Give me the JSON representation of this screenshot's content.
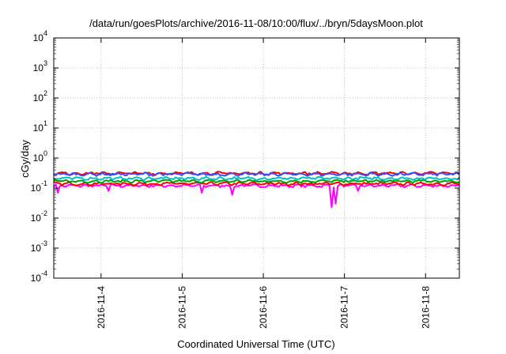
{
  "chart_data": {
    "type": "line",
    "title": "/data/run/goesPlots/archive/2016-11-08/10:00/flux/../bryn/5daysMoon.plot",
    "xlabel": "Coordinated Universal Time (UTC)",
    "ylabel": "cGy/day",
    "yscale": "log",
    "ylim": [
      0.0001,
      10000
    ],
    "y_ticks": [
      {
        "base": "10",
        "exp": "-4",
        "value": 0.0001
      },
      {
        "base": "10",
        "exp": "-3",
        "value": 0.001
      },
      {
        "base": "10",
        "exp": "-2",
        "value": 0.01
      },
      {
        "base": "10",
        "exp": "-1",
        "value": 0.1
      },
      {
        "base": "10",
        "exp": "0",
        "value": 1
      },
      {
        "base": "10",
        "exp": "1",
        "value": 10
      },
      {
        "base": "10",
        "exp": "2",
        "value": 100
      },
      {
        "base": "10",
        "exp": "3",
        "value": 1000
      },
      {
        "base": "10",
        "exp": "4",
        "value": 10000
      }
    ],
    "xlim": [
      "2016-11-03T10:00",
      "2016-11-08T10:00"
    ],
    "x_ticks": [
      "2016-11-4",
      "2016-11-5",
      "2016-11-6",
      "2016-11-7",
      "2016-11-8"
    ],
    "grid": true,
    "legend": "none",
    "series": [
      {
        "color": "#ff00ff",
        "base": 0.12,
        "dips": [
          {
            "date": "2016-11-03T11:00",
            "value": 0.07
          },
          {
            "date": "2016-11-04T02:00",
            "value": 0.08
          },
          {
            "date": "2016-11-05T06:00",
            "value": 0.07
          },
          {
            "date": "2016-11-05T15:00",
            "value": 0.06
          },
          {
            "date": "2016-11-06T20:00",
            "value": 0.023
          },
          {
            "date": "2016-11-06T21:30",
            "value": 0.03
          },
          {
            "date": "2016-11-07T04:00",
            "value": 0.08
          }
        ]
      },
      {
        "color": "#ff0000",
        "base": 0.14
      },
      {
        "color": "#00a000",
        "base": 0.17
      },
      {
        "color": "#00c0c0",
        "base": 0.21
      },
      {
        "color": "#ff0000",
        "base": 0.31
      },
      {
        "color": "#3050ff",
        "base": 0.29
      }
    ]
  }
}
